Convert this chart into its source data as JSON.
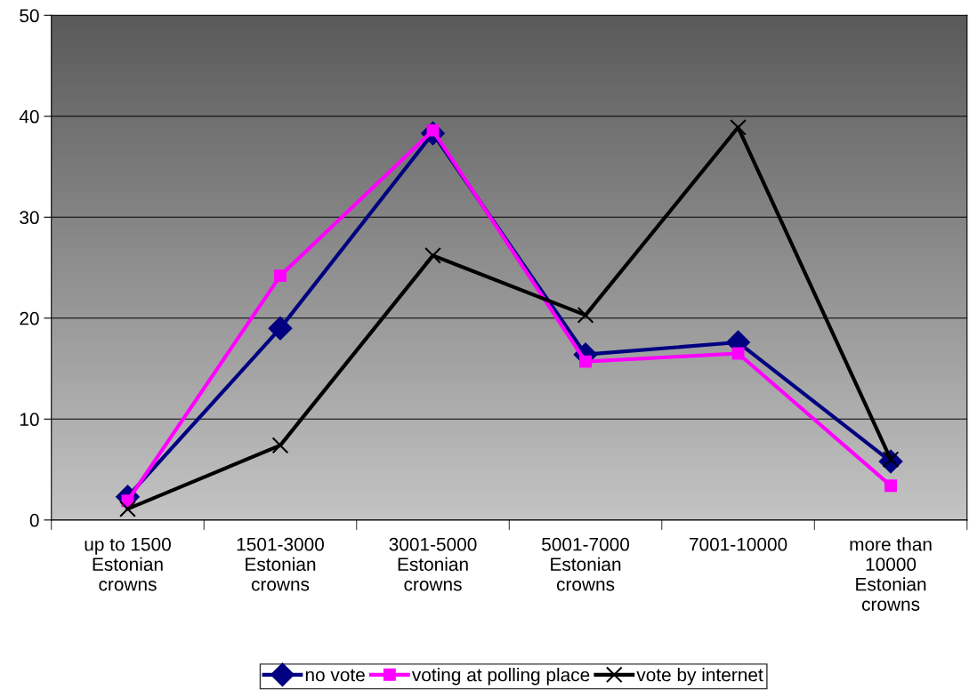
{
  "chart_data": {
    "type": "line",
    "categories": [
      "up to 1500 Estonian crowns",
      "1501-3000 Estonian crowns",
      "3001-5000 Estonian crowns",
      "5001-7000 Estonian crowns",
      "7001-10000",
      "more than 10000 Estonian crowns"
    ],
    "series": [
      {
        "name": "no vote",
        "color": "#000080",
        "marker": "diamond",
        "values": [
          2.3,
          19.0,
          38.3,
          16.4,
          17.6,
          5.8
        ]
      },
      {
        "name": "voting at polling place",
        "color": "#ff00ff",
        "marker": "square",
        "values": [
          1.9,
          24.2,
          38.6,
          15.7,
          16.5,
          3.4
        ]
      },
      {
        "name": "vote by internet",
        "color": "#000000",
        "marker": "cross",
        "values": [
          1.1,
          7.4,
          26.2,
          20.3,
          38.9,
          6.0
        ]
      }
    ],
    "ylim": [
      0,
      50
    ],
    "yticks": [
      0,
      10,
      20,
      30,
      40,
      50
    ],
    "grid": "y",
    "legend": "bottom",
    "line_style": "solid"
  }
}
